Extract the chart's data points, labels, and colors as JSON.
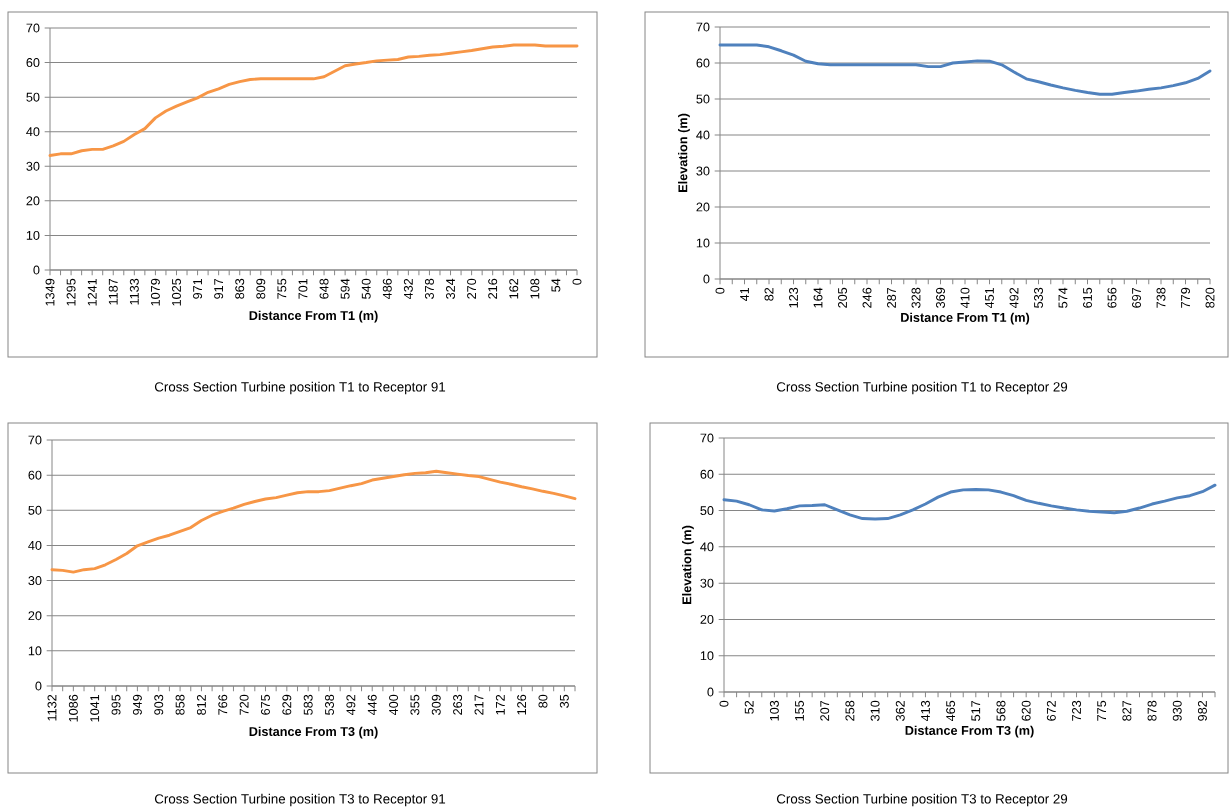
{
  "chart_data": [
    {
      "type": "line",
      "title": "Cross Section Turbine position T1 to Receptor 91",
      "xlabel": "Distance From T1 (m)",
      "ylim": [
        0,
        70
      ],
      "yticks": [
        0,
        10,
        20,
        30,
        40,
        50,
        60,
        70
      ],
      "grid": "y",
      "categories": [
        "1349",
        null,
        "1295",
        null,
        "1241",
        null,
        "1187",
        null,
        "1133",
        null,
        "1079",
        null,
        "1025",
        null,
        "971",
        null,
        "917",
        null,
        "863",
        null,
        "809",
        null,
        "755",
        null,
        "701",
        null,
        "648",
        null,
        "594",
        null,
        "540",
        null,
        "486",
        null,
        "432",
        null,
        "378",
        null,
        "324",
        null,
        "270",
        null,
        "216",
        null,
        "162",
        null,
        "108",
        null,
        "54",
        null,
        "0"
      ],
      "series": [
        {
          "color": "#f79646",
          "values": [
            33.1,
            33.6,
            33.6,
            34.5,
            34.9,
            34.9,
            35.9,
            37.2,
            39.2,
            40.9,
            44.0,
            46.0,
            47.4,
            48.6,
            49.8,
            51.4,
            52.4,
            53.7,
            54.5,
            55.1,
            55.3,
            55.3,
            55.3,
            55.3,
            55.3,
            55.3,
            55.9,
            57.5,
            59.1,
            59.6,
            60.0,
            60.5,
            60.7,
            60.9,
            61.6,
            61.8,
            62.1,
            62.3,
            62.7,
            63.1,
            63.5,
            64.0,
            64.5,
            64.7,
            65.1,
            65.1,
            65.1,
            64.8,
            64.8,
            64.8,
            64.8
          ]
        }
      ]
    },
    {
      "type": "line",
      "title": "Cross Section Turbine position T1 to Receptor 29",
      "xlabel": "Distance From T1 (m)",
      "ylabel": "Elevation (m)",
      "ylim": [
        0,
        70
      ],
      "yticks": [
        0,
        10,
        20,
        30,
        40,
        50,
        60,
        70
      ],
      "grid": "y",
      "categories": [
        "0",
        null,
        "41",
        null,
        "82",
        null,
        "123",
        null,
        "164",
        null,
        "205",
        null,
        "246",
        null,
        "287",
        null,
        "328",
        null,
        "369",
        null,
        "410",
        null,
        "451",
        null,
        "492",
        null,
        "533",
        null,
        "574",
        null,
        "615",
        null,
        "656",
        null,
        "697",
        null,
        "738",
        null,
        "779",
        null,
        "820"
      ],
      "series": [
        {
          "color": "#4f81bd",
          "values": [
            65.0,
            65.0,
            65.0,
            65.0,
            64.5,
            63.4,
            62.2,
            60.5,
            59.8,
            59.5,
            59.5,
            59.5,
            59.5,
            59.5,
            59.5,
            59.5,
            59.5,
            59.0,
            59.0,
            60.0,
            60.3,
            60.6,
            60.5,
            59.5,
            57.5,
            55.6,
            54.8,
            53.9,
            53.1,
            52.4,
            51.8,
            51.3,
            51.3,
            51.8,
            52.2,
            52.7,
            53.1,
            53.7,
            54.5,
            55.7,
            57.8
          ]
        }
      ]
    },
    {
      "type": "line",
      "title": "Cross Section Turbine position T3 to Receptor 91",
      "xlabel": "Distance From T3 (m)",
      "ylim": [
        0,
        70
      ],
      "yticks": [
        0,
        10,
        20,
        30,
        40,
        50,
        60,
        70
      ],
      "grid": "y",
      "categories": [
        "1132",
        null,
        "1086",
        null,
        "1041",
        null,
        "995",
        null,
        "949",
        null,
        "903",
        null,
        "858",
        null,
        "812",
        null,
        "766",
        null,
        "720",
        null,
        "675",
        null,
        "629",
        null,
        "583",
        null,
        "538",
        null,
        "492",
        null,
        "446",
        null,
        "400",
        null,
        "355",
        null,
        "309",
        null,
        "263",
        null,
        "217",
        null,
        "172",
        null,
        "126",
        null,
        "80",
        null,
        "35",
        null
      ],
      "series": [
        {
          "color": "#f79646",
          "values": [
            33.1,
            32.9,
            32.4,
            33.1,
            33.4,
            34.5,
            36.0,
            37.7,
            39.9,
            41.0,
            42.1,
            42.9,
            44.0,
            45.1,
            47.1,
            48.6,
            49.7,
            50.6,
            51.7,
            52.5,
            53.2,
            53.6,
            54.3,
            55.0,
            55.3,
            55.3,
            55.6,
            56.3,
            57.0,
            57.6,
            58.6,
            59.1,
            59.6,
            60.1,
            60.5,
            60.7,
            61.1,
            60.7,
            60.3,
            59.9,
            59.6,
            58.8,
            58.0,
            57.4,
            56.7,
            56.1,
            55.4,
            54.8,
            54.1,
            53.3
          ]
        }
      ]
    },
    {
      "type": "line",
      "title": "Cross Section Turbine position T3 to Receptor 29",
      "xlabel": "Distance From T3 (m)",
      "ylabel": "Elevation (m)",
      "ylim": [
        0,
        70
      ],
      "yticks": [
        0,
        10,
        20,
        30,
        40,
        50,
        60,
        70
      ],
      "grid": "y",
      "categories": [
        "0",
        null,
        "52",
        null,
        "103",
        null,
        "155",
        null,
        "207",
        null,
        "258",
        null,
        "310",
        null,
        "362",
        null,
        "413",
        null,
        "465",
        null,
        "517",
        null,
        "568",
        null,
        "620",
        null,
        "672",
        null,
        "723",
        null,
        "775",
        null,
        "827",
        null,
        "878",
        null,
        "930",
        null,
        "982",
        null
      ],
      "series": [
        {
          "color": "#4f81bd",
          "values": [
            53.0,
            52.6,
            51.6,
            50.2,
            49.9,
            50.5,
            51.3,
            51.4,
            51.6,
            50.2,
            48.8,
            47.8,
            47.7,
            47.8,
            48.8,
            50.2,
            51.8,
            53.7,
            55.1,
            55.7,
            55.8,
            55.7,
            55.1,
            54.1,
            52.8,
            52.0,
            51.3,
            50.7,
            50.2,
            49.8,
            49.6,
            49.4,
            49.8,
            50.7,
            51.8,
            52.6,
            53.5,
            54.1,
            55.2,
            57.0
          ]
        }
      ]
    }
  ]
}
